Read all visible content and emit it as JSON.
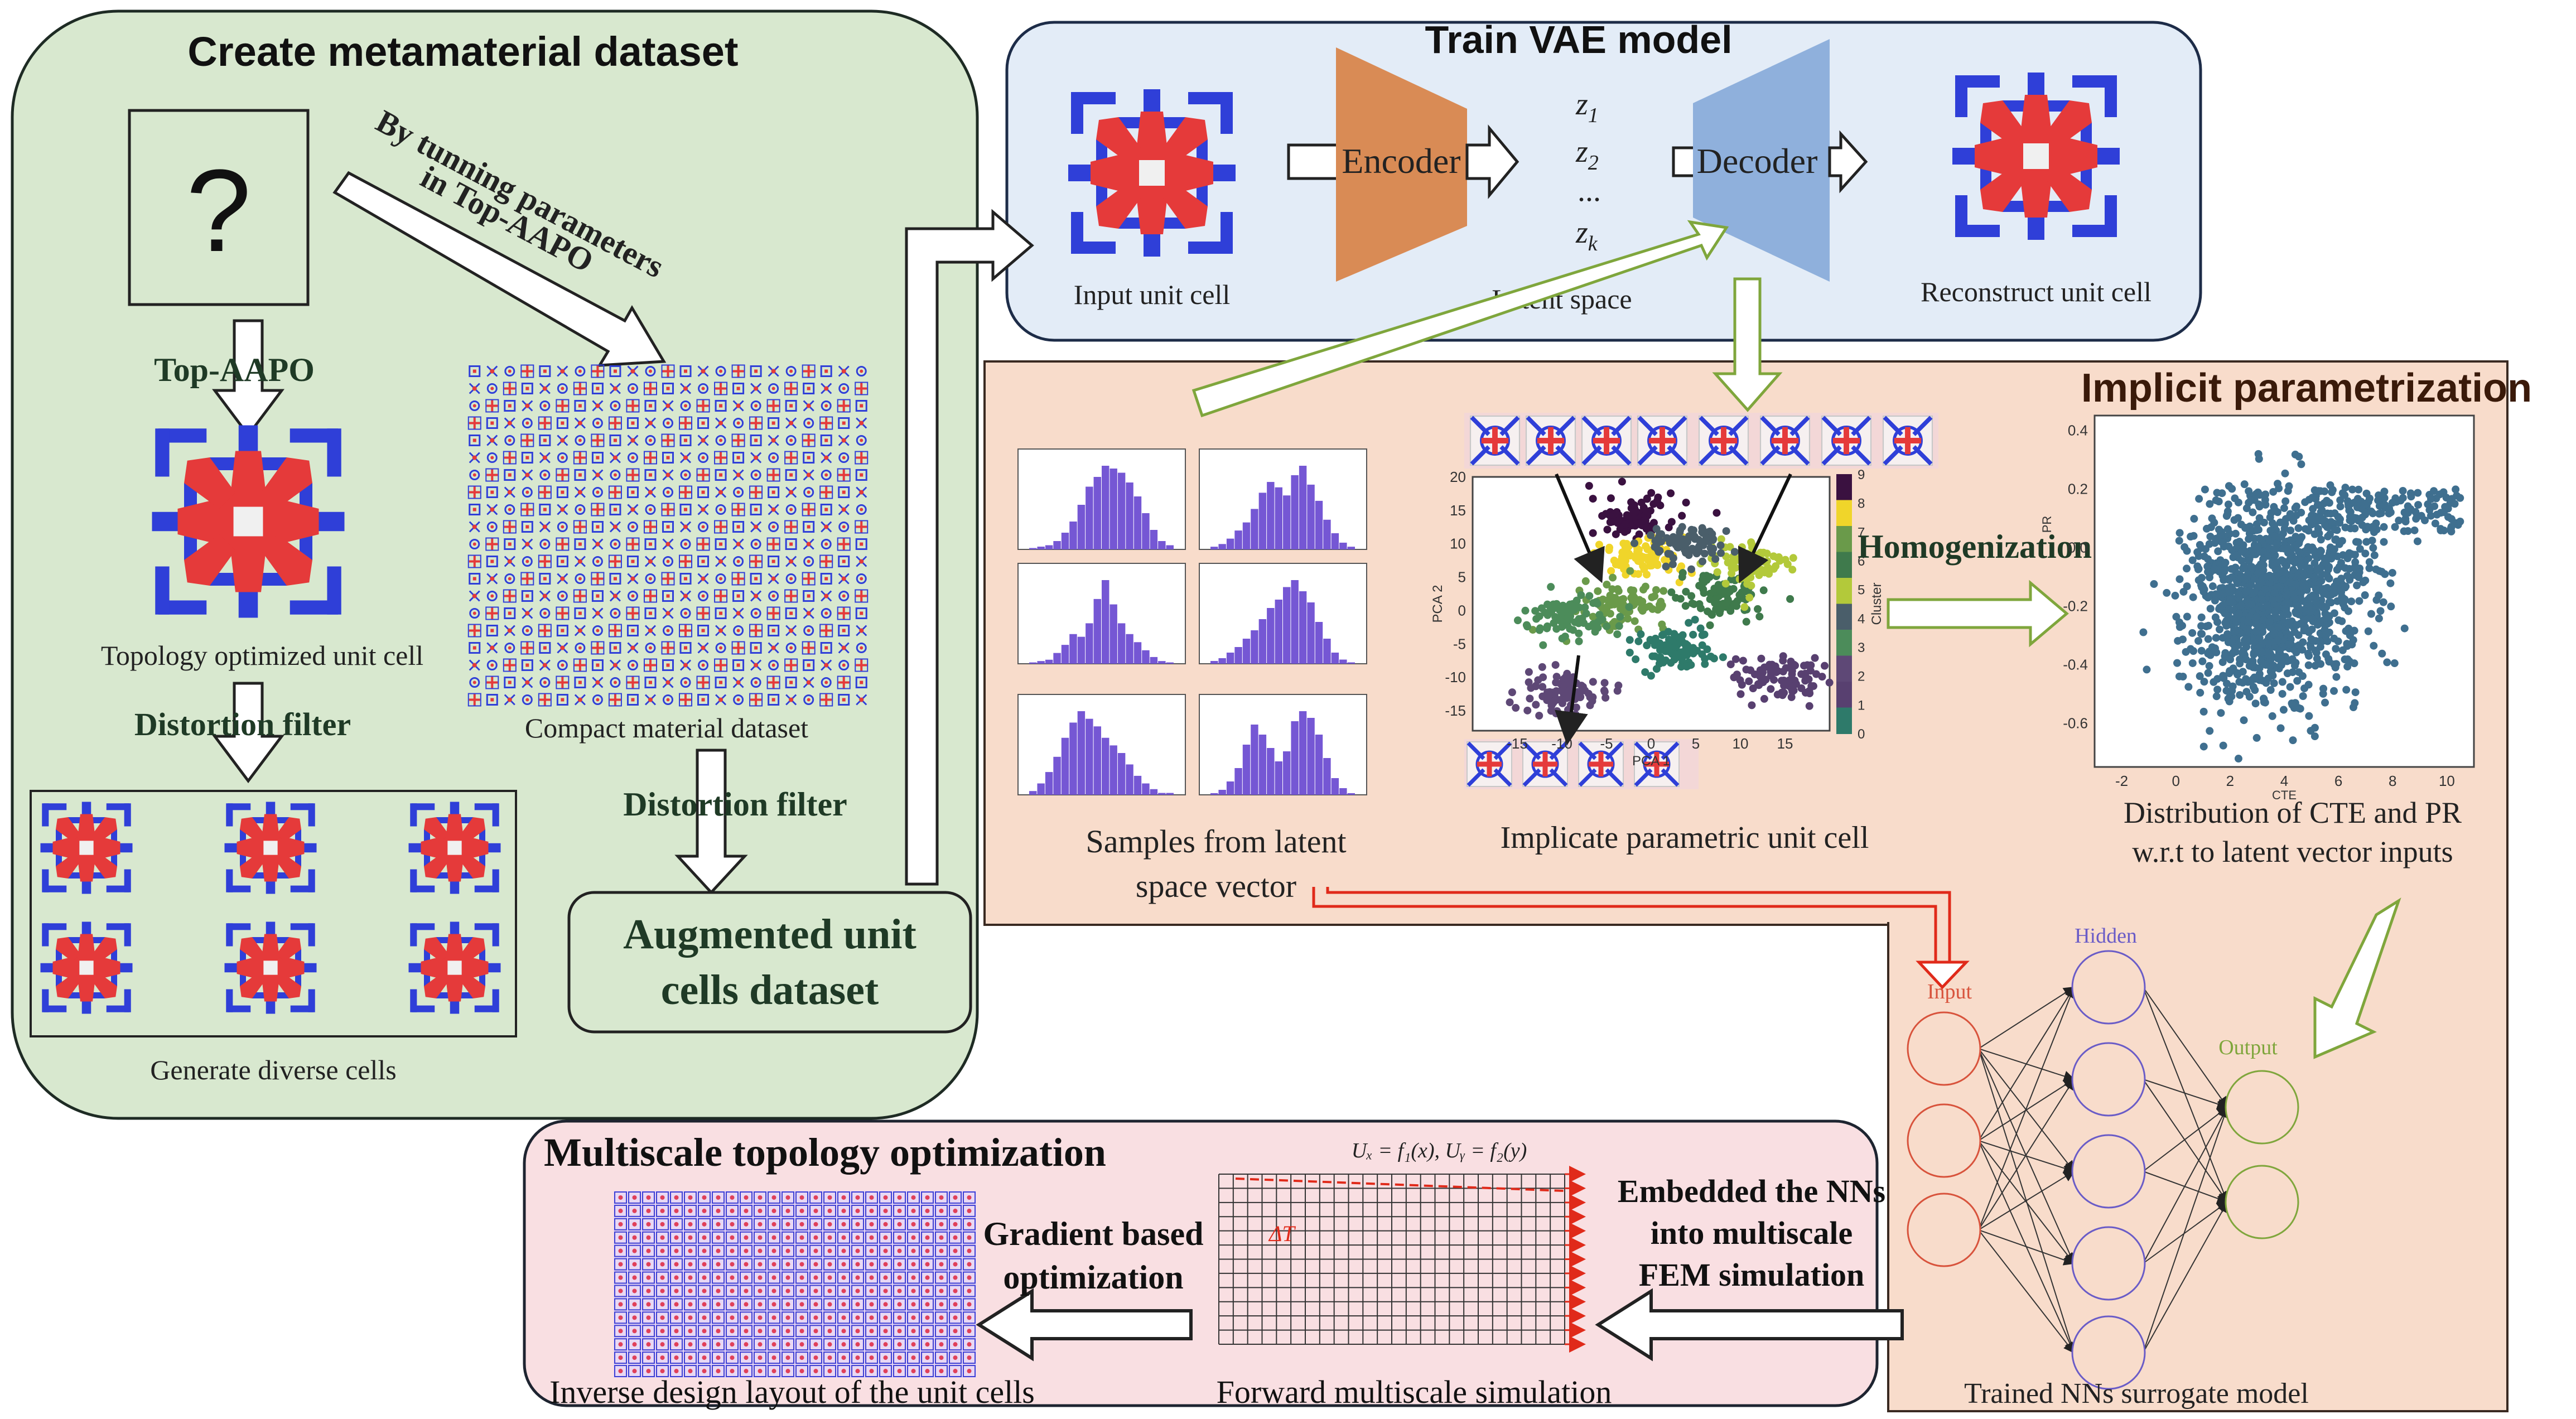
{
  "panels": {
    "create": {
      "title": "Create metamaterial dataset",
      "question": "?",
      "tuning_line1": "By tunning parameters",
      "tuning_line2": "in Top-AAPO",
      "top_aapo": "Top-AAPO",
      "topo_caption": "Topology optimized unit cell",
      "distortion1": "Distortion filter",
      "compact_caption": "Compact material dataset",
      "distortion2": "Distortion filter",
      "diverse_caption": "Generate diverse cells",
      "augmented_line1": "Augmented unit",
      "augmented_line2": "cells dataset"
    },
    "vae": {
      "title": "Train VAE model",
      "input_caption": "Input unit cell",
      "encoder": "Encoder",
      "decoder": "Decoder",
      "latent_caption": "Latent space",
      "z1": "z",
      "z1_sub": "1",
      "z2": "z",
      "z2_sub": "2",
      "dots": "...",
      "zk": "z",
      "zk_sub": "k",
      "recon_caption": "Reconstruct unit cell"
    },
    "implicit": {
      "title": "Implicit parametrization",
      "samples_line1": "Samples from latent",
      "samples_line2": "space vector",
      "parametric_caption": "Implicate parametric unit cell",
      "homogenization": "Homogenization",
      "dist_line1": "Distribution of CTE and PR",
      "dist_line2": "w.r.t to latent vector inputs",
      "pca": {
        "xlabel": "PCA 1",
        "ylabel": "PCA 2",
        "xticks": [
          "-15",
          "-10",
          "-5",
          "0",
          "5",
          "10",
          "15"
        ],
        "yticks": [
          "20",
          "15",
          "10",
          "5",
          "0",
          "-5",
          "-10",
          "-15"
        ],
        "cbar_label": "Cluster",
        "cbar_ticks": [
          "9",
          "8",
          "7",
          "6",
          "5",
          "4",
          "3",
          "2",
          "1",
          "0"
        ]
      },
      "scatter": {
        "xlabel": "CTE",
        "ylabel": "PR",
        "xticks": [
          "-2",
          "0",
          "2",
          "4",
          "6",
          "8",
          "10"
        ],
        "yticks": [
          "0.4",
          "0.2",
          "0.0",
          "-0.2",
          "-0.4",
          "-0.6"
        ]
      }
    },
    "nn": {
      "input_label": "Input",
      "hidden_label": "Hidden",
      "output_label": "Output",
      "caption": "Trained NNs surrogate model"
    },
    "multiscale": {
      "title": "Multiscale topology optimization",
      "gradient_line1": "Gradient based",
      "gradient_line2": "optimization",
      "embedded_line1": "Embedded the NNs",
      "embedded_line2": "into multiscale",
      "embedded_line3": "FEM simulation",
      "equation": "Uₓ = f₁(x), Uᵧ = f₂(y)",
      "delta_t": "ΔT",
      "inverse_caption": "Inverse design layout of the unit cells",
      "forward_caption": "Forward multiscale simulation"
    }
  },
  "colors": {
    "green_panel": "#d8e8cf",
    "blue_panel": "#e3ecf7",
    "orange_panel": "#f8dccb",
    "pink_panel": "#f9dfe2",
    "unit_red": "#e53a3a",
    "unit_blue": "#2f3fd8",
    "encoder": "#d98b55",
    "decoder": "#8fb0dc",
    "hist": "#7557d4",
    "scatter": "#3f6f8f",
    "nn_red": "#d8533c",
    "nn_blue": "#6a5cc7",
    "nn_green": "#7fa63c",
    "arrow_green": "#7fa63c",
    "arrow_red": "#e02a1a"
  },
  "chart_data": [
    {
      "type": "bar",
      "title": "",
      "note": "six small histograms of latent samples (2x3 grid)",
      "series": [
        {
          "values": [
            1,
            2,
            3,
            6,
            12,
            20,
            32,
            45,
            52,
            60,
            58,
            55,
            48,
            38,
            26,
            14,
            6,
            3
          ]
        },
        {
          "values": [
            2,
            4,
            8,
            14,
            20,
            30,
            42,
            50,
            46,
            40,
            55,
            62,
            48,
            36,
            22,
            12,
            5,
            2
          ]
        },
        {
          "values": [
            1,
            2,
            3,
            8,
            14,
            22,
            20,
            30,
            48,
            62,
            44,
            30,
            22,
            16,
            10,
            5,
            2,
            1
          ]
        },
        {
          "values": [
            2,
            4,
            8,
            12,
            18,
            24,
            32,
            40,
            46,
            55,
            60,
            52,
            44,
            30,
            18,
            8,
            3,
            1
          ]
        },
        {
          "values": [
            2,
            6,
            12,
            20,
            30,
            38,
            44,
            40,
            36,
            30,
            26,
            22,
            16,
            10,
            6,
            3,
            1,
            1
          ]
        },
        {
          "values": [
            1,
            3,
            8,
            16,
            30,
            42,
            36,
            28,
            20,
            26,
            44,
            50,
            46,
            36,
            22,
            10,
            4,
            1
          ]
        }
      ]
    },
    {
      "type": "scatter",
      "title": "",
      "xlabel": "PCA 1",
      "ylabel": "PCA 2",
      "xlim": [
        -20,
        20
      ],
      "ylim": [
        -18,
        20
      ],
      "series": [
        {
          "cluster": 9,
          "center": [
            -2,
            14
          ],
          "color": "#3a1140"
        },
        {
          "cluster": 8,
          "center": [
            -1,
            8
          ],
          "color": "#f0d52a"
        },
        {
          "cluster": 7,
          "center": [
            -3,
            1
          ],
          "color": "#6a9a4a"
        },
        {
          "cluster": 6,
          "center": [
            8,
            2
          ],
          "color": "#3f7a4c"
        },
        {
          "cluster": 5,
          "center": [
            11,
            7
          ],
          "color": "#b3c93a"
        },
        {
          "cluster": 4,
          "center": [
            4,
            10
          ],
          "color": "#4a5e6a"
        },
        {
          "cluster": 3,
          "center": [
            -9,
            -1
          ],
          "color": "#4c8c5a"
        },
        {
          "cluster": 2,
          "center": [
            -10,
            -12
          ],
          "color": "#5e4876"
        },
        {
          "cluster": 1,
          "center": [
            14,
            -10
          ],
          "color": "#584070"
        },
        {
          "cluster": 0,
          "center": [
            3,
            -6
          ],
          "color": "#2e7a6a"
        }
      ]
    },
    {
      "type": "scatter",
      "title": "",
      "xlabel": "CTE",
      "ylabel": "PR",
      "xlim": [
        -3,
        11
      ],
      "ylim": [
        -0.75,
        0.45
      ]
    }
  ]
}
